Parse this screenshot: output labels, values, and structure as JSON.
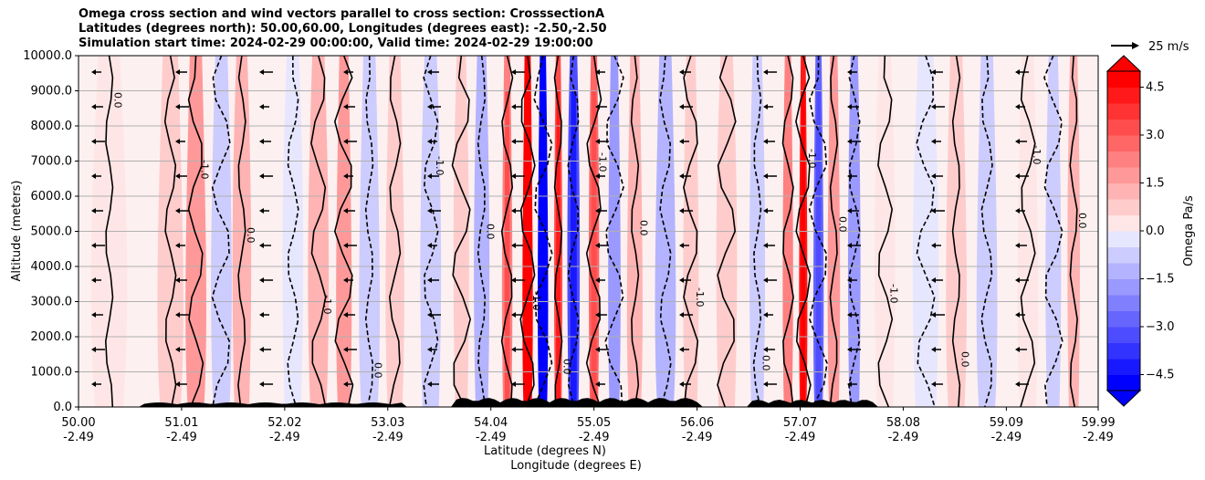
{
  "titles": [
    "Omega cross section and wind vectors parallel to cross section: CrosssectionA",
    "Latitudes (degrees north): 50.00,60.00, Longitudes (degrees east): -2.50,-2.50",
    "Simulation start time: 2024-02-29 00:00:00, Valid time: 2024-02-29 19:00:00"
  ],
  "chart_data": {
    "type": "heatmap",
    "title": "Omega cross section and wind vectors parallel to cross section: CrosssectionA",
    "xlabel": "Latitude (degrees N)",
    "xlabel2": "Longitude (degrees E)",
    "ylabel": "Altitude (meters)",
    "ylim": [
      0,
      10000
    ],
    "xlim": [
      50.0,
      59.99
    ],
    "yticks": [
      "0.0",
      "1000.0",
      "2000.0",
      "3000.0",
      "4000.0",
      "5000.0",
      "6000.0",
      "7000.0",
      "8000.0",
      "9000.0",
      "10000.0"
    ],
    "ytick_values": [
      0,
      1000,
      2000,
      3000,
      4000,
      5000,
      6000,
      7000,
      8000,
      9000,
      10000
    ],
    "xticks_lat": [
      "50.00",
      "51.01",
      "52.02",
      "53.03",
      "54.04",
      "55.05",
      "56.06",
      "57.07",
      "58.08",
      "59.09",
      "59.99"
    ],
    "xticks_lon": [
      "-2.49",
      "-2.49",
      "-2.49",
      "-2.49",
      "-2.49",
      "-2.49",
      "-2.49",
      "-2.49",
      "-2.49",
      "-2.49",
      "-2.49"
    ],
    "xtick_values": [
      50.0,
      51.01,
      52.02,
      53.03,
      54.04,
      55.05,
      56.06,
      57.07,
      58.08,
      59.09,
      59.99
    ],
    "colorbar": {
      "label": "Omega Pa/s",
      "range": [
        -5.0,
        5.0
      ],
      "step": 0.5,
      "ticks": [
        "4.5",
        "3.0",
        "1.5",
        "0.0",
        "−1.5",
        "−3.0",
        "−4.5"
      ],
      "tick_values": [
        4.5,
        3.0,
        1.5,
        0.0,
        -1.5,
        -3.0,
        -4.5
      ]
    },
    "vector_key": "25 m/s",
    "contour_labels": [
      "0.0",
      "1.0",
      "-1.0",
      "0.0"
    ],
    "omega_bands": [
      {
        "lat": 50.3,
        "w": 0.35,
        "v": 0.6
      },
      {
        "lat": 50.9,
        "w": 0.25,
        "v": 1.2
      },
      {
        "lat": 51.15,
        "w": 0.2,
        "v": 1.8
      },
      {
        "lat": 51.4,
        "w": 0.2,
        "v": -0.8
      },
      {
        "lat": 51.6,
        "w": 0.18,
        "v": 1.5
      },
      {
        "lat": 52.1,
        "w": 0.2,
        "v": -0.6
      },
      {
        "lat": 52.35,
        "w": 0.2,
        "v": 1.6
      },
      {
        "lat": 52.6,
        "w": 0.15,
        "v": 2.1
      },
      {
        "lat": 52.85,
        "w": 0.2,
        "v": -1.0
      },
      {
        "lat": 53.1,
        "w": 0.18,
        "v": 0.9
      },
      {
        "lat": 53.45,
        "w": 0.2,
        "v": -1.2
      },
      {
        "lat": 53.75,
        "w": 0.15,
        "v": 1.2
      },
      {
        "lat": 53.95,
        "w": 0.15,
        "v": -1.5
      },
      {
        "lat": 54.2,
        "w": 0.1,
        "v": 2.6
      },
      {
        "lat": 54.4,
        "w": 0.1,
        "v": 4.8
      },
      {
        "lat": 54.55,
        "w": 0.1,
        "v": -5.0
      },
      {
        "lat": 54.7,
        "w": 0.08,
        "v": 3.6
      },
      {
        "lat": 54.85,
        "w": 0.12,
        "v": -3.5
      },
      {
        "lat": 55.05,
        "w": 0.1,
        "v": 2.8
      },
      {
        "lat": 55.25,
        "w": 0.12,
        "v": -2.2
      },
      {
        "lat": 55.45,
        "w": 0.15,
        "v": 1.4
      },
      {
        "lat": 55.75,
        "w": 0.2,
        "v": -1.3
      },
      {
        "lat": 56.0,
        "w": 0.15,
        "v": 1.1
      },
      {
        "lat": 56.35,
        "w": 0.2,
        "v": 0.9
      },
      {
        "lat": 56.65,
        "w": 0.15,
        "v": -1.0
      },
      {
        "lat": 56.95,
        "w": 0.1,
        "v": 2.4
      },
      {
        "lat": 57.1,
        "w": 0.08,
        "v": 4.5
      },
      {
        "lat": 57.25,
        "w": 0.1,
        "v": -2.8
      },
      {
        "lat": 57.4,
        "w": 0.12,
        "v": 1.8
      },
      {
        "lat": 57.6,
        "w": 0.12,
        "v": -1.8
      },
      {
        "lat": 57.9,
        "w": 0.2,
        "v": 0.7
      },
      {
        "lat": 58.3,
        "w": 0.25,
        "v": -0.5
      },
      {
        "lat": 58.6,
        "w": 0.2,
        "v": 0.8
      },
      {
        "lat": 58.9,
        "w": 0.2,
        "v": -0.9
      },
      {
        "lat": 59.3,
        "w": 0.2,
        "v": 0.6
      },
      {
        "lat": 59.55,
        "w": 0.15,
        "v": -1.2
      },
      {
        "lat": 59.75,
        "w": 0.12,
        "v": 1.4
      }
    ]
  }
}
